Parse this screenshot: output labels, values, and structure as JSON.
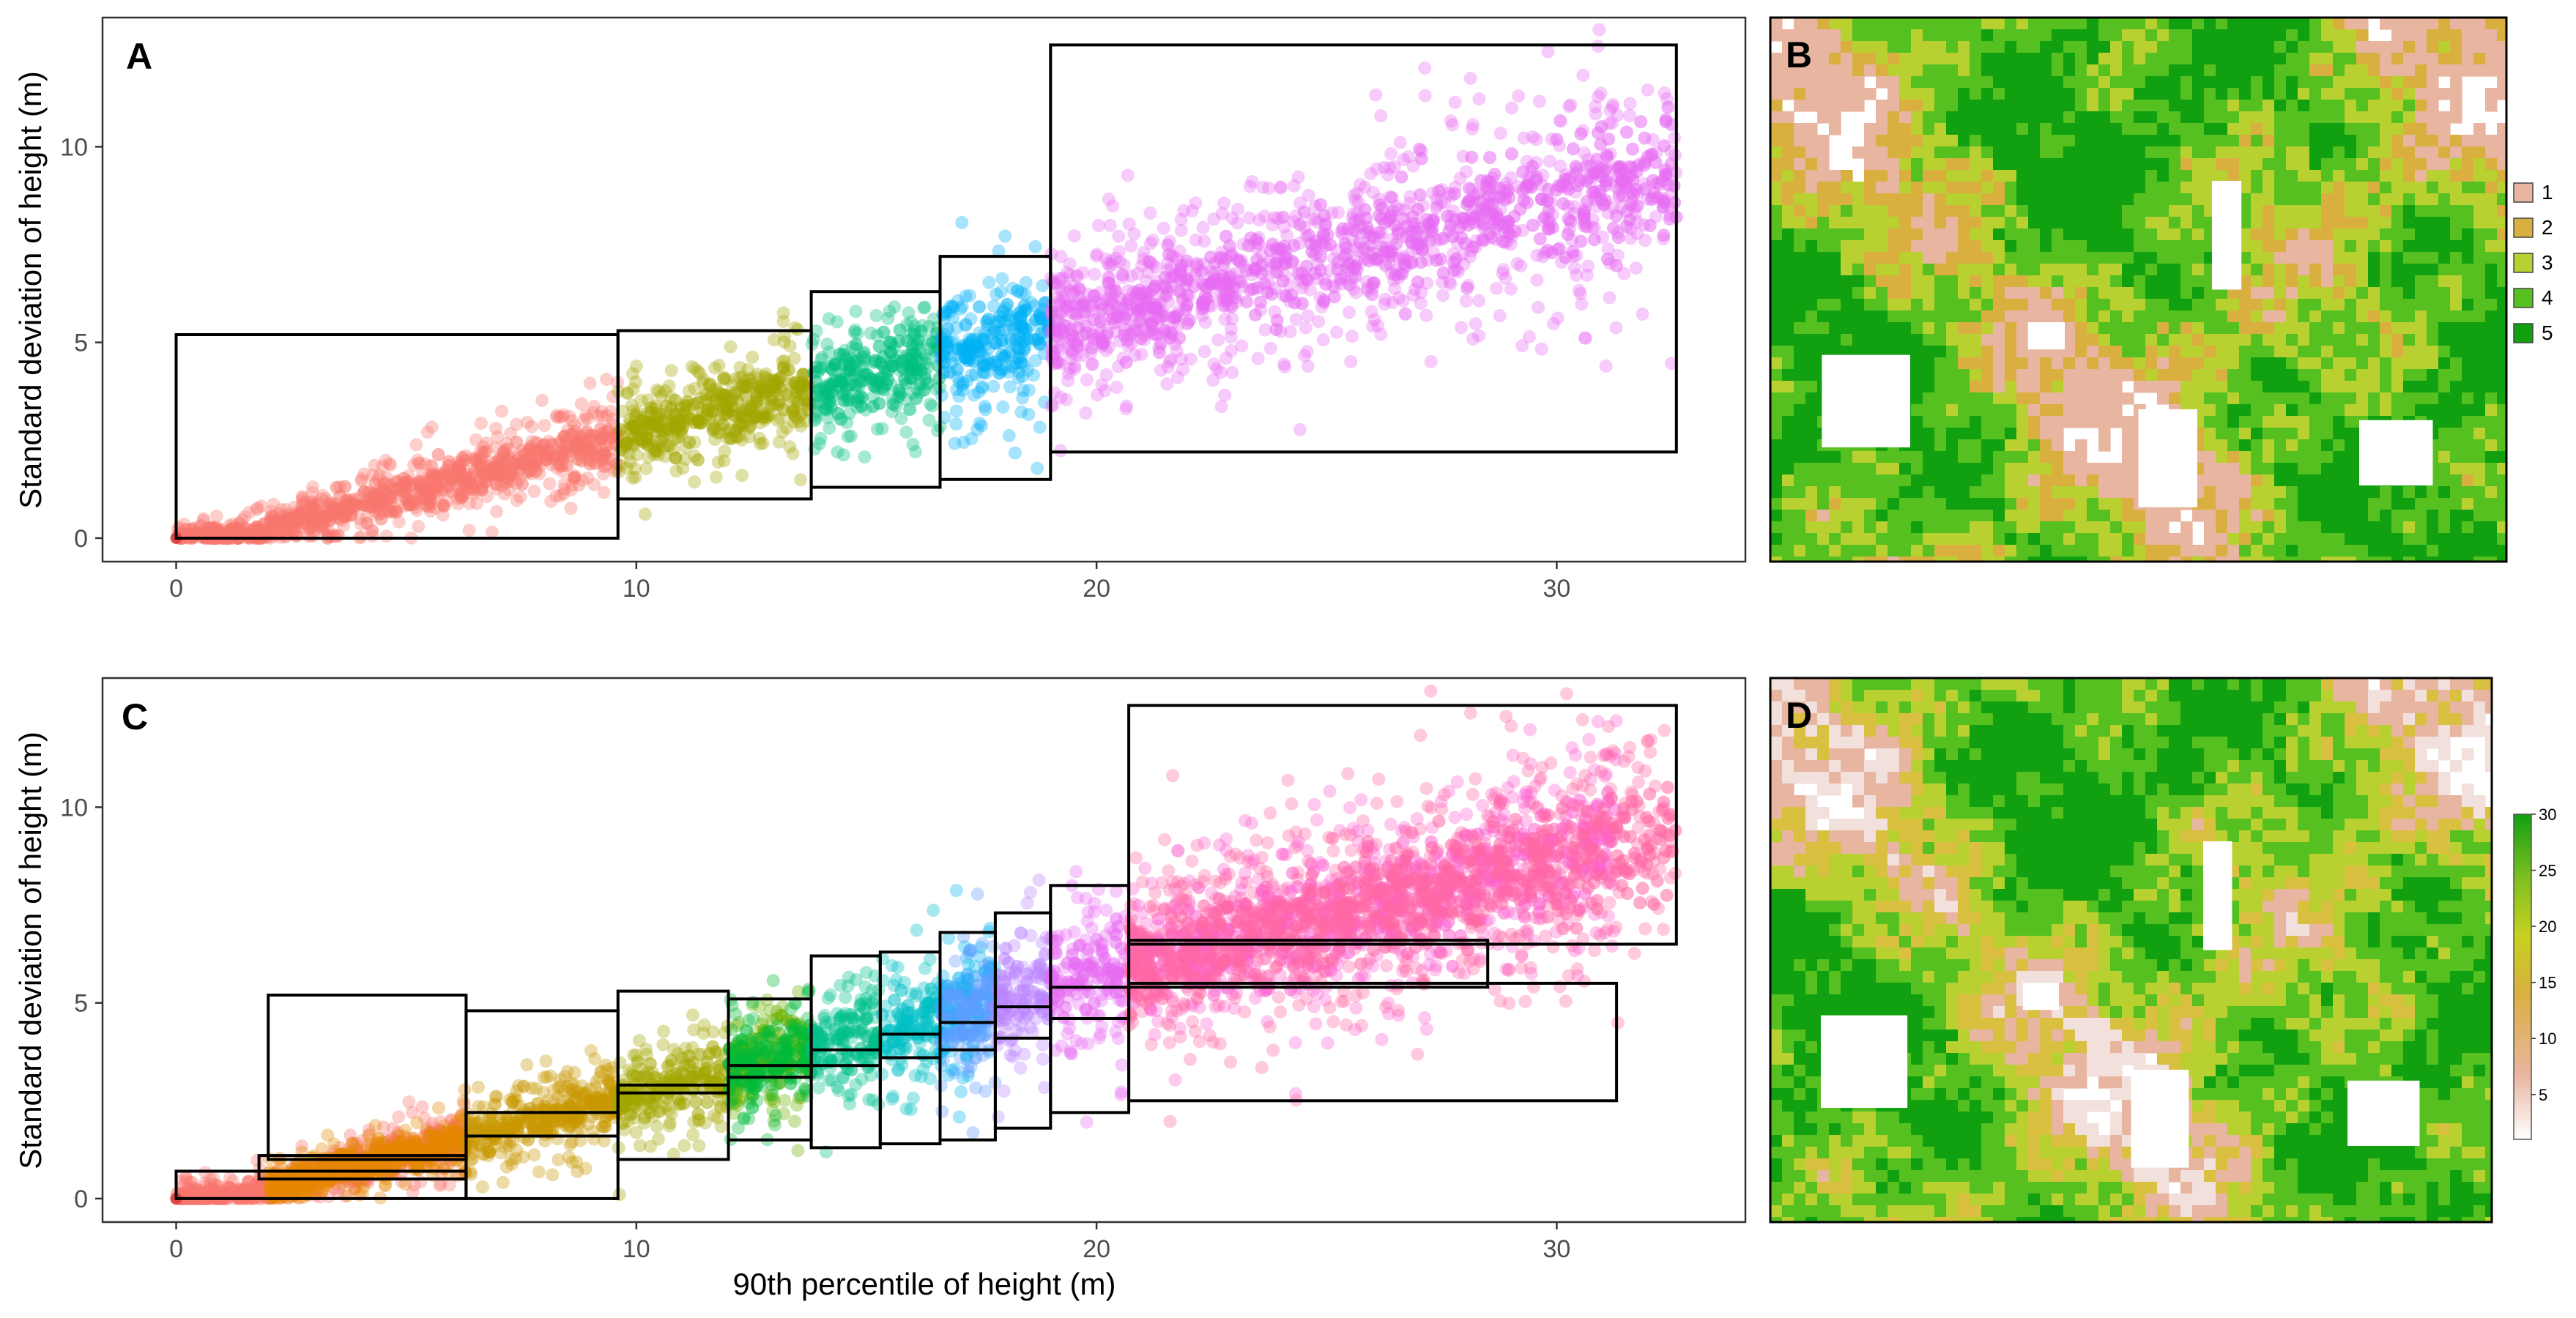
{
  "chart_data": [
    {
      "panel": "A",
      "type": "scatter",
      "xlabel": "",
      "ylabel": "Standard deviation of height (m)",
      "xlim": [
        -1.6,
        34.1
      ],
      "ylim": [
        -0.6,
        13.3
      ],
      "x_ticks": [
        0,
        10,
        20,
        30
      ],
      "y_ticks": [
        0,
        5,
        10
      ],
      "groups": [
        {
          "color": "#F8766D",
          "x_range": [
            0,
            9.6
          ],
          "y_range": [
            0,
            5.2
          ]
        },
        {
          "color": "#A3A500",
          "x_range": [
            9.6,
            13.8
          ],
          "y_range": [
            1.0,
            5.3
          ]
        },
        {
          "color": "#00BF7D",
          "x_range": [
            13.8,
            16.6
          ],
          "y_range": [
            1.3,
            6.3
          ]
        },
        {
          "color": "#00B0F6",
          "x_range": [
            16.6,
            19.0
          ],
          "y_range": [
            1.5,
            7.2
          ]
        },
        {
          "color": "#E76BF3",
          "x_range": [
            19.0,
            32.6
          ],
          "y_range": [
            2.2,
            12.6
          ]
        }
      ],
      "boxes": [
        {
          "x0": 0,
          "x1": 9.6,
          "y0": 0,
          "y1": 5.2
        },
        {
          "x0": 9.6,
          "x1": 13.8,
          "y0": 1.0,
          "y1": 5.3
        },
        {
          "x0": 13.8,
          "x1": 16.6,
          "y0": 1.3,
          "y1": 6.3
        },
        {
          "x0": 16.6,
          "x1": 19.0,
          "y0": 1.5,
          "y1": 7.2
        },
        {
          "x0": 19.0,
          "x1": 32.6,
          "y0": 2.2,
          "y1": 12.6
        }
      ]
    },
    {
      "panel": "B",
      "type": "heatmap",
      "legend_title": "",
      "legend_entries": [
        "1",
        "2",
        "3",
        "4",
        "5"
      ],
      "legend_colors": [
        "#E8B5A0",
        "#D9B040",
        "#B8D030",
        "#55C020",
        "#10A010"
      ]
    },
    {
      "panel": "C",
      "type": "scatter",
      "xlabel": "90th percentile of height (m)",
      "ylabel": "Standard deviation of height (m)",
      "xlim": [
        -1.6,
        34.1
      ],
      "ylim": [
        -0.6,
        13.3
      ],
      "x_ticks": [
        0,
        10,
        20,
        30
      ],
      "y_ticks": [
        0,
        5,
        10
      ],
      "groups": [
        {
          "color": "#F8766D",
          "x_range": [
            0,
            6.3
          ]
        },
        {
          "color": "#E58700",
          "x_range": [
            2.0,
            6.3
          ]
        },
        {
          "color": "#C99800",
          "x_range": [
            6.3,
            9.6
          ]
        },
        {
          "color": "#A3A500",
          "x_range": [
            9.6,
            12.0
          ]
        },
        {
          "color": "#6BB100",
          "x_range": [
            12.0,
            13.8
          ]
        },
        {
          "color": "#00BA38",
          "x_range": [
            12.0,
            13.8
          ]
        },
        {
          "color": "#00C08B",
          "x_range": [
            13.8,
            15.3
          ]
        },
        {
          "color": "#00BFC4",
          "x_range": [
            15.3,
            16.6
          ]
        },
        {
          "color": "#00B4F0",
          "x_range": [
            16.6,
            17.8
          ]
        },
        {
          "color": "#619CFF",
          "x_range": [
            16.6,
            17.8
          ]
        },
        {
          "color": "#B983FF",
          "x_range": [
            17.8,
            19.0
          ]
        },
        {
          "color": "#E76BF3",
          "x_range": [
            19.0,
            20.7
          ]
        },
        {
          "color": "#FD61D1",
          "x_range": [
            20.7,
            31.3
          ]
        },
        {
          "color": "#FF67A4",
          "x_range": [
            20.7,
            32.6
          ]
        }
      ],
      "boxes": [
        {
          "x0": 0,
          "x1": 6.3,
          "y0": 0,
          "y1": 0.7
        },
        {
          "x0": 1.8,
          "x1": 6.3,
          "y0": 0.5,
          "y1": 1.1
        },
        {
          "x0": 2.0,
          "x1": 6.3,
          "y0": 1.0,
          "y1": 5.2
        },
        {
          "x0": 6.3,
          "x1": 9.6,
          "y0": 0,
          "y1": 2.2
        },
        {
          "x0": 6.3,
          "x1": 9.6,
          "y0": 1.6,
          "y1": 4.8
        },
        {
          "x0": 9.6,
          "x1": 12.0,
          "y0": 1.0,
          "y1": 2.9
        },
        {
          "x0": 9.6,
          "x1": 12.0,
          "y0": 2.7,
          "y1": 5.3
        },
        {
          "x0": 12.0,
          "x1": 13.8,
          "y0": 1.5,
          "y1": 3.4
        },
        {
          "x0": 12.0,
          "x1": 13.8,
          "y0": 3.1,
          "y1": 5.1
        },
        {
          "x0": 13.8,
          "x1": 15.3,
          "y0": 1.3,
          "y1": 3.8
        },
        {
          "x0": 13.8,
          "x1": 15.3,
          "y0": 3.4,
          "y1": 6.2
        },
        {
          "x0": 15.3,
          "x1": 16.6,
          "y0": 1.4,
          "y1": 4.2
        },
        {
          "x0": 15.3,
          "x1": 16.6,
          "y0": 3.6,
          "y1": 6.3
        },
        {
          "x0": 16.6,
          "x1": 17.8,
          "y0": 1.5,
          "y1": 4.5
        },
        {
          "x0": 16.6,
          "x1": 17.8,
          "y0": 3.8,
          "y1": 6.8
        },
        {
          "x0": 17.8,
          "x1": 19.0,
          "y0": 1.8,
          "y1": 4.9
        },
        {
          "x0": 17.8,
          "x1": 19.0,
          "y0": 4.1,
          "y1": 7.3
        },
        {
          "x0": 19.0,
          "x1": 20.7,
          "y0": 2.2,
          "y1": 5.4
        },
        {
          "x0": 19.0,
          "x1": 20.7,
          "y0": 4.6,
          "y1": 8.0
        },
        {
          "x0": 20.7,
          "x1": 31.3,
          "y0": 2.5,
          "y1": 5.5
        },
        {
          "x0": 20.7,
          "x1": 28.5,
          "y0": 5.4,
          "y1": 6.6
        },
        {
          "x0": 20.7,
          "x1": 32.6,
          "y0": 6.5,
          "y1": 12.6
        }
      ]
    },
    {
      "panel": "D",
      "type": "heatmap",
      "legend_title": "",
      "colorbar_ticks": [
        "5",
        "10",
        "15",
        "20",
        "25",
        "30"
      ],
      "colorbar_range": [
        1,
        30
      ],
      "colorbar_colors": [
        "#FFFFFF",
        "#E8B5A0",
        "#D9B040",
        "#C8D020",
        "#80C020",
        "#10A010"
      ]
    }
  ],
  "panels": {
    "a": {
      "label": "A"
    },
    "b": {
      "label": "B"
    },
    "c": {
      "label": "C"
    },
    "d": {
      "label": "D"
    }
  }
}
